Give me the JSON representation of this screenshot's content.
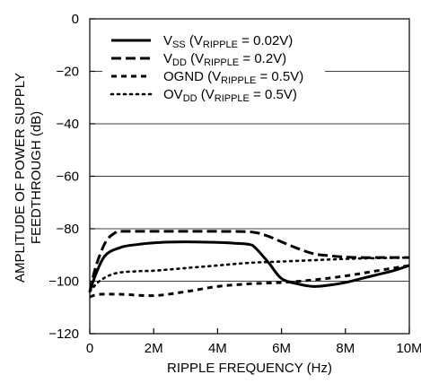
{
  "chart_data": {
    "type": "line",
    "title": "",
    "xlabel": "RIPPLE FREQUENCY (Hz)",
    "ylabel_line1": "AMPLITUDE OF POWER SUPPLY",
    "ylabel_line2": "FEEDTHROUGH (dB)",
    "xlim": [
      0,
      10
    ],
    "ylim": [
      -120,
      0
    ],
    "xticks": [
      0,
      2,
      4,
      6,
      8,
      10
    ],
    "xtick_labels": [
      "0",
      "2M",
      "4M",
      "6M",
      "8M",
      "10M"
    ],
    "yticks": [
      0,
      -20,
      -40,
      -60,
      -80,
      -100,
      -120
    ],
    "ytick_labels": [
      "0",
      "−20",
      "−40",
      "−60",
      "−80",
      "−100",
      "−120"
    ],
    "grid": "horizontal",
    "legend_position": "top",
    "series": [
      {
        "name_main": "V",
        "name_sub": "SS",
        "name_rest": " (V",
        "name_sub2": "RIPPLE",
        "name_end": " = 0.02V)",
        "style": "solid",
        "x": [
          0,
          0.2,
          0.5,
          1,
          1.5,
          2,
          2.5,
          3,
          3.5,
          4,
          4.5,
          5,
          5.2,
          5.6,
          6,
          6.5,
          7,
          7.5,
          8,
          8.5,
          9,
          9.5,
          10
        ],
        "y": [
          -104,
          -97,
          -90,
          -87,
          -86,
          -85.4,
          -85.1,
          -85,
          -85.1,
          -85.2,
          -85.5,
          -86,
          -87.5,
          -93,
          -99,
          -101,
          -102,
          -101.5,
          -100.5,
          -99,
          -97.5,
          -96,
          -94
        ]
      },
      {
        "name_main": "V",
        "name_sub": "DD",
        "name_rest": " (V",
        "name_sub2": "RIPPLE",
        "name_end": " = 0.2V)",
        "style": "dashed",
        "x": [
          0,
          0.2,
          0.5,
          0.8,
          1,
          2,
          3,
          4,
          5,
          5.5,
          6,
          6.5,
          7,
          7.5,
          8,
          8.5,
          9,
          9.5,
          10
        ],
        "y": [
          -104,
          -94,
          -85,
          -81.5,
          -81,
          -81,
          -81,
          -81,
          -81.2,
          -82.5,
          -85,
          -87.5,
          -89.5,
          -90.3,
          -90.8,
          -91,
          -91,
          -91,
          -91
        ]
      },
      {
        "name_main": "OGND",
        "name_sub": "",
        "name_rest": " (V",
        "name_sub2": "RIPPLE",
        "name_end": " = 0.5V)",
        "style": "short-dashed",
        "x": [
          0,
          0.3,
          1,
          2,
          3,
          4,
          5,
          6,
          7,
          8,
          9,
          10
        ],
        "y": [
          -106,
          -105,
          -105,
          -105.5,
          -104,
          -102,
          -101,
          -100.5,
          -99.5,
          -98,
          -96,
          -94
        ]
      },
      {
        "name_main": "OV",
        "name_sub": "DD",
        "name_rest": " (V",
        "name_sub2": "RIPPLE",
        "name_end": " = 0.5V)",
        "style": "dotted",
        "x": [
          0,
          0.3,
          0.8,
          1.5,
          2,
          3,
          4,
          5,
          6,
          7,
          8,
          9,
          10
        ],
        "y": [
          -104,
          -100,
          -97,
          -96.2,
          -96,
          -95,
          -94,
          -93,
          -92.5,
          -92,
          -91.5,
          -91.2,
          -91
        ]
      }
    ]
  }
}
